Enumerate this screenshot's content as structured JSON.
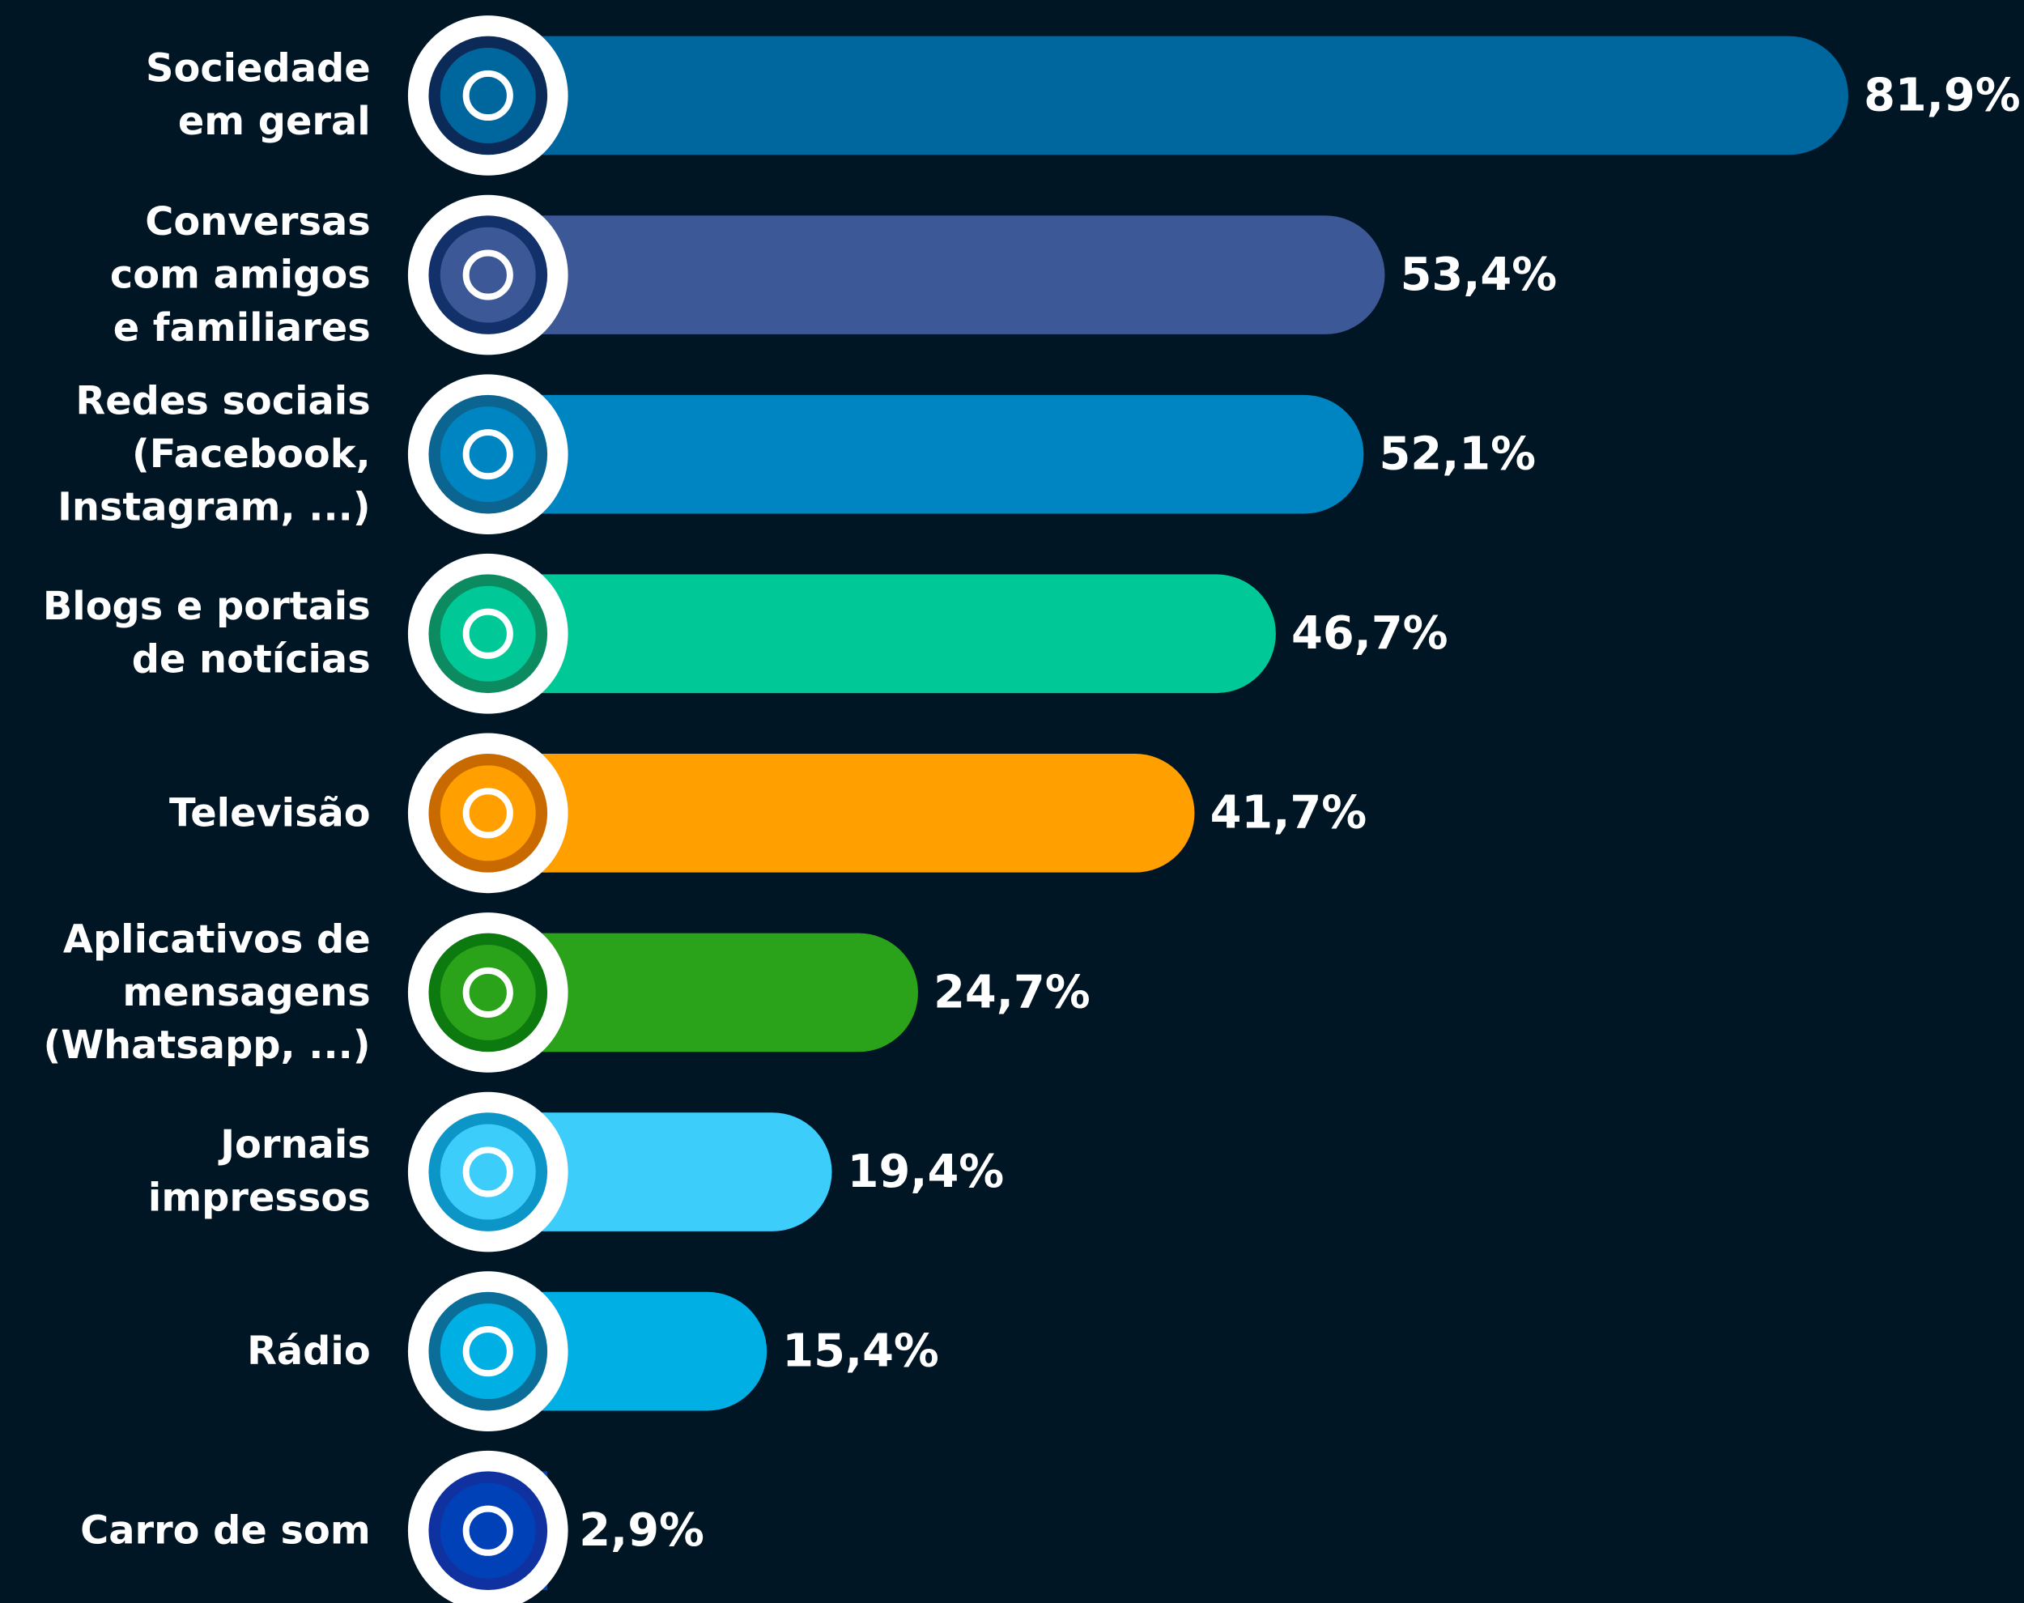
{
  "chart_data": {
    "type": "bar",
    "orientation": "horizontal",
    "categories": [
      "Sociedade\nem geral",
      "Conversas\ncom amigos\ne familiares",
      "Redes sociais\n(Facebook,\nInstagram, ...)",
      "Blogs e portais\nde notícias",
      "Televisão",
      "Aplicativos de\nmensagens\n(Whatsapp, ...)",
      "Jornais\nimpressos",
      "Rádio",
      "Carro de som"
    ],
    "values": [
      81.9,
      53.4,
      52.1,
      46.7,
      41.7,
      24.7,
      19.4,
      15.4,
      2.9
    ],
    "value_labels": [
      "81,9%",
      "53,4%",
      "52,1%",
      "46,7%",
      "41,7%",
      "24,7%",
      "19,4%",
      "15,4%",
      "2,9%"
    ],
    "colors": [
      "#00679e",
      "#3c5897",
      "#0085c3",
      "#00c897",
      "#ff9f00",
      "#2aa31a",
      "#3ccdfb",
      "#00afe3",
      "#0041b8"
    ],
    "ring_colors": [
      "#0b2a57",
      "#12306a",
      "#0b6590",
      "#0c8a60",
      "#c96a00",
      "#0d7a10",
      "#0c96c8",
      "#0a6e99",
      "#1032a0"
    ]
  }
}
